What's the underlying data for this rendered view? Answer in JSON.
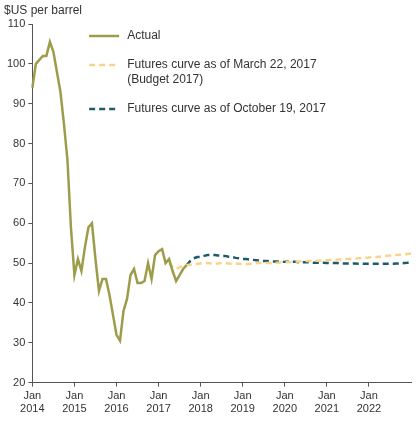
{
  "chart_data": {
    "type": "line",
    "ylabel": "$US per barrel",
    "categories": [
      "Jan 2014",
      null,
      null,
      null,
      null,
      null,
      null,
      null,
      null,
      null,
      null,
      null,
      "Jan 2015",
      null,
      null,
      null,
      null,
      null,
      null,
      null,
      null,
      null,
      null,
      null,
      "Jan 2016",
      null,
      null,
      null,
      null,
      null,
      null,
      null,
      null,
      null,
      null,
      null,
      "Jan 2017",
      null,
      null,
      null,
      null,
      null,
      null,
      null,
      null,
      null,
      null,
      null,
      "Jan 2018",
      null,
      null,
      null,
      null,
      null,
      null,
      null,
      null,
      null,
      null,
      null,
      "Jan 2019",
      null,
      null,
      null,
      null,
      null,
      null,
      null,
      null,
      null,
      null,
      null,
      "Jan 2020",
      null,
      null,
      null,
      null,
      null,
      null,
      null,
      null,
      null,
      null,
      null,
      "Jan 2021",
      null,
      null,
      null,
      null,
      null,
      null,
      null,
      null,
      null,
      null,
      null,
      "Jan 2022",
      null,
      null,
      null,
      null,
      null,
      null,
      null,
      null,
      null,
      null,
      null,
      null
    ],
    "series": [
      {
        "name": "Actual",
        "color": "#9c9c4b",
        "line_style": "solid",
        "values": [
          94,
          100,
          101,
          102,
          102,
          105.5,
          103,
          98,
          93,
          85,
          76,
          59,
          47,
          51,
          48,
          54,
          59,
          60,
          51,
          43,
          46,
          46,
          42,
          37,
          32,
          30.5,
          38,
          41,
          47,
          48.5,
          45,
          45,
          45.5,
          50,
          46,
          52,
          53,
          53.5,
          50,
          51,
          48,
          45.5,
          47,
          48.5,
          49.5,
          null,
          null,
          null,
          null,
          null,
          null,
          null,
          null,
          null,
          null,
          null,
          null,
          null,
          null,
          null,
          null,
          null,
          null,
          null,
          null,
          null,
          null,
          null,
          null,
          null,
          null,
          null,
          null,
          null,
          null,
          null,
          null,
          null,
          null,
          null,
          null,
          null,
          null,
          null,
          null,
          null,
          null,
          null,
          null,
          null,
          null,
          null,
          null,
          null,
          null,
          null,
          null,
          null,
          null,
          null,
          null,
          null,
          null,
          null,
          null,
          null,
          null,
          null,
          null
        ]
      },
      {
        "name": "Futures curve as of March 22, 2017 (Budget 2017)",
        "color": "#f8d48a",
        "line_style": "dashed",
        "values": [
          null,
          null,
          null,
          null,
          null,
          null,
          null,
          null,
          null,
          null,
          null,
          null,
          null,
          null,
          null,
          null,
          null,
          null,
          null,
          null,
          null,
          null,
          null,
          null,
          null,
          null,
          null,
          null,
          null,
          null,
          null,
          null,
          null,
          null,
          null,
          null,
          null,
          null,
          null,
          50,
          49,
          48.5,
          49,
          49.3,
          49.5,
          49.6,
          49.7,
          49.8,
          49.9,
          50,
          50,
          49.9,
          49.8,
          49.9,
          50,
          50,
          49.9,
          49.8,
          49.8,
          49.8,
          49.8,
          49.7,
          49.8,
          49.9,
          50,
          50,
          50,
          50,
          50,
          50.1,
          50.1,
          50.2,
          50.2,
          50.2,
          50.3,
          50.3,
          50.4,
          50.4,
          50.5,
          50.5,
          50.5,
          50.6,
          50.6,
          50.7,
          50.7,
          50.8,
          50.8,
          50.9,
          50.9,
          51,
          51,
          51.1,
          51.1,
          51.2,
          51.2,
          51.3,
          51.4,
          51.5,
          51.5,
          51.6,
          51.7,
          51.8,
          51.9,
          52,
          52,
          52.1,
          52.2,
          52.3,
          52.4
        ]
      },
      {
        "name": "Futures curve as of October 19, 2017",
        "color": "#1e5b6a",
        "line_style": "dashed",
        "values": [
          null,
          null,
          null,
          null,
          null,
          null,
          null,
          null,
          null,
          null,
          null,
          null,
          null,
          null,
          null,
          null,
          null,
          null,
          null,
          null,
          null,
          null,
          null,
          null,
          null,
          null,
          null,
          null,
          null,
          null,
          null,
          null,
          null,
          null,
          null,
          null,
          null,
          null,
          null,
          null,
          null,
          null,
          null,
          null,
          49.5,
          50.5,
          51.2,
          51.5,
          51.5,
          51.8,
          52,
          52,
          52,
          51.9,
          51.8,
          51.8,
          51.6,
          51.5,
          51.3,
          51.2,
          51,
          51,
          50.9,
          50.8,
          50.7,
          50.6,
          50.5,
          50.5,
          50.4,
          50.4,
          50.4,
          50.4,
          50.3,
          50.3,
          50.3,
          50.3,
          50.2,
          50.2,
          50.2,
          50.2,
          50.1,
          50.1,
          50.1,
          50.1,
          50,
          50,
          50,
          50,
          49.9,
          49.9,
          49.9,
          49.9,
          49.9,
          49.8,
          49.8,
          49.8,
          49.8,
          49.8,
          49.8,
          49.8,
          49.8,
          49.8,
          49.8,
          49.8,
          49.9,
          49.9,
          50,
          50.1,
          50.3
        ]
      }
    ],
    "ylim": [
      20,
      110
    ],
    "yticks": [
      20,
      30,
      40,
      50,
      60,
      70,
      80,
      90,
      100,
      110
    ],
    "grid": false,
    "legend": "upper left"
  }
}
